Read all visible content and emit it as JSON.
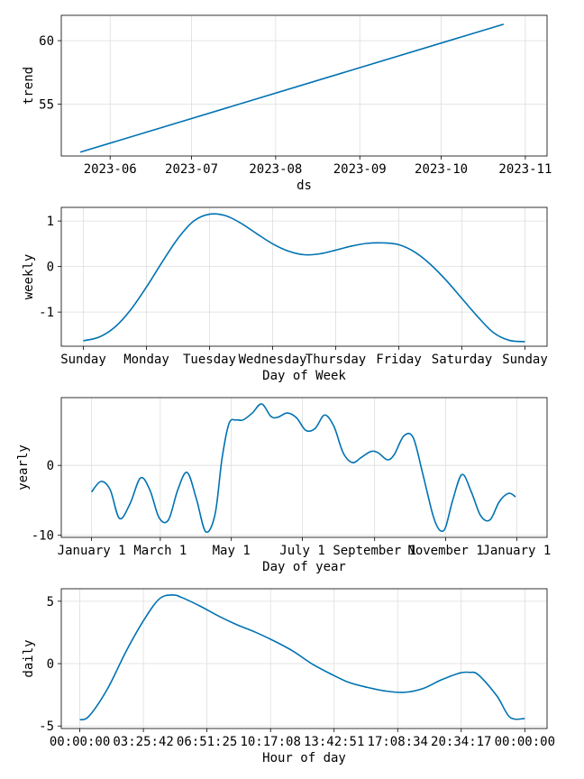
{
  "colors": {
    "line": "#0072B2",
    "grid": "#dddddd"
  },
  "chart_data": [
    {
      "id": "trend",
      "type": "line",
      "xlabel": "ds",
      "ylabel": "trend",
      "x_ticks": [
        "2023-06",
        "2023-07",
        "2023-08",
        "2023-09",
        "2023-10",
        "2023-11"
      ],
      "x_tick_values": [
        11,
        41,
        72,
        103,
        133,
        164
      ],
      "x_range": [
        -7,
        172
      ],
      "y_ticks": [
        "55",
        "60"
      ],
      "y_tick_values": [
        55,
        60
      ],
      "ylim": [
        50.9,
        62.0
      ],
      "grid": true,
      "x": [
        0,
        156
      ],
      "y": [
        51.2,
        61.3
      ]
    },
    {
      "id": "weekly",
      "type": "line",
      "xlabel": "Day of Week",
      "ylabel": "weekly",
      "x_ticks": [
        "Sunday",
        "Monday",
        "Tuesday",
        "Wednesday",
        "Thursday",
        "Friday",
        "Saturday",
        "Sunday"
      ],
      "x_tick_values": [
        0,
        1,
        2,
        3,
        4,
        5,
        6,
        7
      ],
      "x_range": [
        -0.35,
        7.35
      ],
      "y_ticks": [
        "-1",
        "0",
        "1"
      ],
      "y_tick_values": [
        -1,
        0,
        1
      ],
      "ylim": [
        -1.75,
        1.3
      ],
      "grid": true,
      "x": [
        0,
        0.25,
        0.5,
        0.75,
        1,
        1.25,
        1.5,
        1.75,
        2,
        2.25,
        2.5,
        2.75,
        3,
        3.25,
        3.5,
        3.75,
        4,
        4.25,
        4.5,
        4.75,
        5,
        5.25,
        5.5,
        5.75,
        6,
        6.25,
        6.5,
        6.75,
        7
      ],
      "y": [
        -1.63,
        -1.55,
        -1.33,
        -0.95,
        -0.45,
        0.1,
        0.62,
        1.0,
        1.15,
        1.12,
        0.95,
        0.72,
        0.5,
        0.34,
        0.26,
        0.28,
        0.36,
        0.45,
        0.51,
        0.52,
        0.48,
        0.32,
        0.05,
        -0.3,
        -0.7,
        -1.1,
        -1.45,
        -1.62,
        -1.65
      ]
    },
    {
      "id": "yearly",
      "type": "line",
      "xlabel": "Day of year",
      "ylabel": "yearly",
      "x_ticks": [
        "January 1",
        "March 1",
        "May 1",
        "July 1",
        "September 1",
        "November 1",
        "January 1"
      ],
      "x_tick_values": [
        0,
        59,
        120,
        181,
        243,
        304,
        365
      ],
      "x_range": [
        -26,
        391
      ],
      "y_ticks": [
        "-10",
        "0"
      ],
      "y_tick_values": [
        -10,
        0
      ],
      "ylim": [
        -10.3,
        9.7
      ],
      "grid": true,
      "x": [
        0,
        8,
        16,
        24,
        33,
        42,
        50,
        58,
        66,
        74,
        82,
        90,
        98,
        106,
        112,
        118,
        124,
        130,
        138,
        146,
        154,
        160,
        168,
        176,
        184,
        192,
        200,
        208,
        216,
        224,
        232,
        240,
        246,
        254,
        260,
        268,
        276,
        284,
        292,
        296,
        300,
        304,
        310,
        318,
        326,
        334,
        342,
        350,
        358,
        364
      ],
      "y": [
        -3.8,
        -2.3,
        -3.5,
        -7.6,
        -5.5,
        -1.8,
        -3.5,
        -7.5,
        -7.8,
        -3.5,
        -1.0,
        -4.8,
        -9.5,
        -7.0,
        1.0,
        6.0,
        6.5,
        6.5,
        7.5,
        8.8,
        7.0,
        6.9,
        7.5,
        6.8,
        5.0,
        5.3,
        7.2,
        5.6,
        1.8,
        0.4,
        1.2,
        2.0,
        1.8,
        0.8,
        1.6,
        4.2,
        4.0,
        -1.0,
        -6.5,
        -8.5,
        -9.4,
        -8.8,
        -5.0,
        -1.3,
        -3.8,
        -7.2,
        -7.8,
        -5.2,
        -4.0,
        -4.5
      ]
    },
    {
      "id": "daily",
      "type": "line",
      "xlabel": "Hour of day",
      "ylabel": "daily",
      "x_ticks": [
        "00:00:00",
        "03:25:42",
        "06:51:25",
        "10:17:08",
        "13:42:51",
        "17:08:34",
        "20:34:17",
        "00:00:00"
      ],
      "x_tick_values": [
        0,
        3.4286,
        6.8571,
        10.2857,
        13.7143,
        17.1429,
        20.5714,
        24
      ],
      "x_range": [
        -1.0,
        25.2
      ],
      "y_ticks": [
        "-5",
        "0",
        "5"
      ],
      "y_tick_values": [
        -5,
        0,
        5
      ],
      "ylim": [
        -5.2,
        6.0
      ],
      "grid": true,
      "x": [
        0,
        0.5,
        1.5,
        2.5,
        3.5,
        4.3,
        5.0,
        5.5,
        6.5,
        7.5,
        8.5,
        9.5,
        10.5,
        11.5,
        12.5,
        13.5,
        14.5,
        15.5,
        16.5,
        17.5,
        18.5,
        19.5,
        20.5,
        21.0,
        21.5,
        22.5,
        23.2,
        24
      ],
      "y": [
        -4.5,
        -4.2,
        -2.0,
        1.0,
        3.6,
        5.2,
        5.5,
        5.3,
        4.6,
        3.8,
        3.1,
        2.5,
        1.8,
        1.0,
        0.0,
        -0.8,
        -1.5,
        -1.9,
        -2.2,
        -2.3,
        -2.0,
        -1.3,
        -0.75,
        -0.7,
        -0.9,
        -2.6,
        -4.3,
        -4.4
      ]
    }
  ]
}
